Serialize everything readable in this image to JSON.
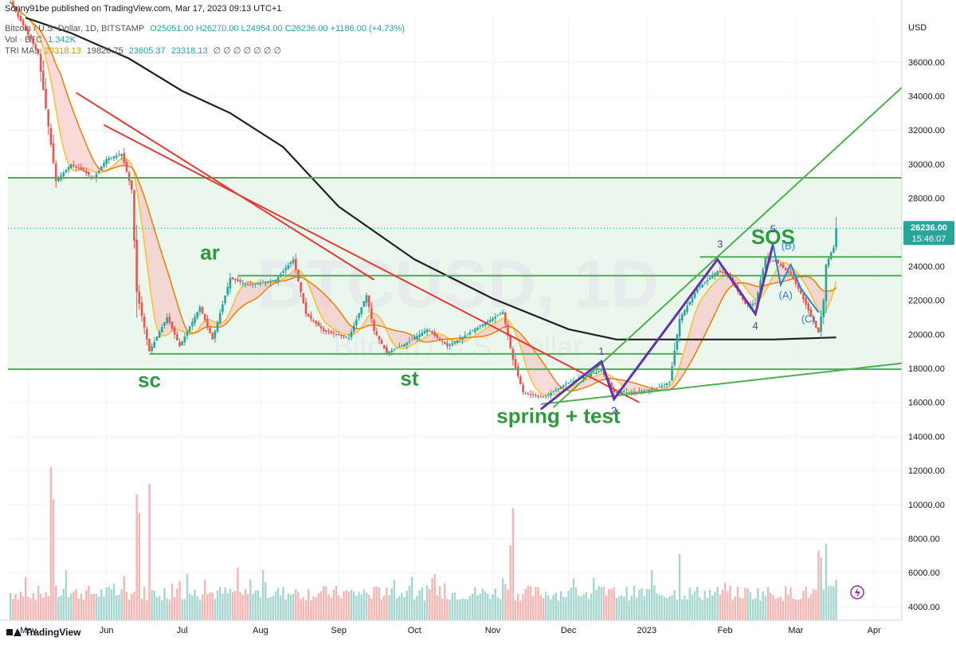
{
  "header": {
    "publish_line": "Sonny91be published on TradingView.com, Mar 17, 2023 09:13 UTC+1",
    "symbol_line": "Bitcoin / U.S. Dollar, 1D, BITSTAMP",
    "ohlc": "O25051.00 H26270.00 L24954.00 C26236.00 +1186.00 (+4.73%)",
    "vol_label": "Vol · BTC",
    "vol_value": "1.342K",
    "ma_label": "TRI MAs",
    "ma_values": [
      "23318.13",
      "19820.75",
      "23605.37",
      "23318.13"
    ],
    "ma_placeholders": "∅ ∅ ∅ ∅ ∅ ∅ ∅"
  },
  "watermark": {
    "symbol": "BTCUSD, 1D",
    "name": "Bitcoin / U.S. Dollar"
  },
  "footer": {
    "brand": "TradingView"
  },
  "price_tag": {
    "price": "26236.00",
    "countdown": "15:46:07"
  },
  "colors": {
    "up": "#26a69a",
    "down": "#ef5350",
    "accumulation_zone": "#e8f5e9",
    "support": "#4caf50",
    "resistance_trend": "#e53935",
    "wave_count": "#5e35b1",
    "corrective_wave": "#1e88e5",
    "ma_long": "#212121",
    "ma_fast": "#fbc02d",
    "ma_slow": "#f57c00"
  },
  "annotations": {
    "sc": "sc",
    "ar": "ar",
    "st": "st",
    "spring": "spring + test",
    "sos": "SOS",
    "waves": [
      "1",
      "2",
      "3",
      "4",
      "5"
    ],
    "corrective": [
      "(A)",
      "(B)",
      "(C)"
    ]
  },
  "chart_data": {
    "type": "candlestick",
    "title": "",
    "y_axis_unit": "USD",
    "ylim": [
      3200,
      38800
    ],
    "y_ticks": [
      "36000.00",
      "34000.00",
      "32000.00",
      "30000.00",
      "28000.00",
      "26000.00",
      "24000.00",
      "22000.00",
      "20000.00",
      "18000.00",
      "16000.00",
      "14000.00",
      "12000.00",
      "10000.00",
      "8000.00",
      "6000.00",
      "4000.00"
    ],
    "x_ticks": [
      "May",
      "Jun",
      "Jul",
      "Aug",
      "Sep",
      "Oct",
      "Nov",
      "Dec",
      "2023",
      "Feb",
      "Mar",
      "Apr"
    ],
    "x_tick_dates": [
      "2022-05-01",
      "2022-06-01",
      "2022-07-01",
      "2022-08-01",
      "2022-09-01",
      "2022-10-01",
      "2022-11-01",
      "2022-12-01",
      "2023-01-01",
      "2023-02-01",
      "2023-03-01",
      "2023-04-01"
    ],
    "date_range": [
      "2022-04-23",
      "2023-04-12"
    ],
    "close_path": [
      [
        "2022-04-24",
        39500
      ],
      [
        "2022-05-05",
        36500
      ],
      [
        "2022-05-12",
        29000
      ],
      [
        "2022-05-18",
        30000
      ],
      [
        "2022-05-27",
        29200
      ],
      [
        "2022-06-01",
        30300
      ],
      [
        "2022-06-07",
        30600
      ],
      [
        "2022-06-11",
        28500
      ],
      [
        "2022-06-13",
        22500
      ],
      [
        "2022-06-18",
        19000
      ],
      [
        "2022-06-25",
        21000
      ],
      [
        "2022-06-30",
        19300
      ],
      [
        "2022-07-08",
        21600
      ],
      [
        "2022-07-13",
        19700
      ],
      [
        "2022-07-20",
        23300
      ],
      [
        "2022-07-27",
        22900
      ],
      [
        "2022-08-07",
        23200
      ],
      [
        "2022-08-14",
        24400
      ],
      [
        "2022-08-19",
        21200
      ],
      [
        "2022-08-26",
        20200
      ],
      [
        "2022-09-05",
        19800
      ],
      [
        "2022-09-12",
        22300
      ],
      [
        "2022-09-15",
        20200
      ],
      [
        "2022-09-20",
        18900
      ],
      [
        "2022-09-28",
        19500
      ],
      [
        "2022-10-06",
        20300
      ],
      [
        "2022-10-14",
        19300
      ],
      [
        "2022-10-26",
        20400
      ],
      [
        "2022-11-05",
        21300
      ],
      [
        "2022-11-09",
        18500
      ],
      [
        "2022-11-13",
        16600
      ],
      [
        "2022-11-21",
        16300
      ],
      [
        "2022-11-30",
        17100
      ],
      [
        "2022-12-14",
        17900
      ],
      [
        "2022-12-19",
        16600
      ],
      [
        "2022-12-28",
        16600
      ],
      [
        "2023-01-05",
        16850
      ],
      [
        "2023-01-10",
        17200
      ],
      [
        "2023-01-14",
        20900
      ],
      [
        "2023-01-21",
        22700
      ],
      [
        "2023-01-29",
        23700
      ],
      [
        "2023-02-02",
        23500
      ],
      [
        "2023-02-09",
        21800
      ],
      [
        "2023-02-13",
        21800
      ],
      [
        "2023-02-17",
        24500
      ],
      [
        "2023-02-21",
        24300
      ],
      [
        "2023-02-27",
        23500
      ],
      [
        "2023-03-03",
        22400
      ],
      [
        "2023-03-09",
        20400
      ],
      [
        "2023-03-10",
        20100
      ],
      [
        "2023-03-12",
        22000
      ],
      [
        "2023-03-13",
        24100
      ],
      [
        "2023-03-15",
        24800
      ],
      [
        "2023-03-16",
        25100
      ],
      [
        "2023-03-17",
        26236
      ]
    ],
    "candles_shown": 327,
    "last_bar": {
      "date": "2023-03-17",
      "open": 25051,
      "high": 26270,
      "low": 24954,
      "close": 26236,
      "change": 1186,
      "change_pct": 4.73
    },
    "series": [
      {
        "name": "TRI MA 1",
        "value": 23318.13,
        "color": "#fbc02d"
      },
      {
        "name": "TRI MA 2",
        "value": 19820.75,
        "color": "#212121"
      },
      {
        "name": "TRI MA 3",
        "value": 23605.37,
        "color": "#f57c00"
      },
      {
        "name": "TRI MA 4",
        "value": 23318.13,
        "color": "#fbc02d"
      }
    ],
    "long_ma_path": [
      [
        "2022-04-30",
        38600
      ],
      [
        "2022-05-18",
        37700
      ],
      [
        "2022-06-10",
        36200
      ],
      [
        "2022-07-01",
        34300
      ],
      [
        "2022-07-20",
        33000
      ],
      [
        "2022-08-10",
        31000
      ],
      [
        "2022-09-01",
        27500
      ],
      [
        "2022-10-01",
        24400
      ],
      [
        "2022-11-01",
        22100
      ],
      [
        "2022-12-01",
        20300
      ],
      [
        "2022-12-20",
        19700
      ],
      [
        "2023-01-20",
        19700
      ],
      [
        "2023-02-20",
        19700
      ],
      [
        "2023-03-17",
        19820.75
      ]
    ],
    "volume_ylim": [
      3200,
      12400
    ],
    "volume_spikes": [
      [
        "2022-05-10",
        12200
      ],
      [
        "2022-05-11",
        10300
      ],
      [
        "2022-06-13",
        10600
      ],
      [
        "2022-06-18",
        11200
      ],
      [
        "2022-06-14",
        9500
      ],
      [
        "2022-11-09",
        9800
      ],
      [
        "2022-11-08",
        7600
      ],
      [
        "2023-01-14",
        7100
      ],
      [
        "2023-03-10",
        7300
      ],
      [
        "2023-03-13",
        7700
      ],
      [
        "2023-03-11",
        6900
      ]
    ],
    "volume_base": 4800,
    "accumulation_range": [
      17950,
      29200
    ],
    "horizontal_levels": [
      {
        "price": 29200,
        "from": "2022-04-23",
        "to": "2023-04-12"
      },
      {
        "price": 17950,
        "from": "2022-04-23",
        "to": "2023-04-12"
      },
      {
        "price": 18850,
        "from": "2022-06-18",
        "to": "2023-01-15"
      },
      {
        "price": 23450,
        "from": "2022-07-23",
        "to": "2023-04-12"
      },
      {
        "price": 24550,
        "from": "2023-01-22",
        "to": "2023-04-12"
      }
    ],
    "trendlines": [
      {
        "color": "#e53935",
        "points": [
          [
            "2022-05-20",
            34200
          ],
          [
            "2022-09-15",
            23200
          ]
        ]
      },
      {
        "color": "#e53935",
        "points": [
          [
            "2022-05-31",
            32300
          ],
          [
            "2022-12-29",
            16000
          ]
        ]
      },
      {
        "color": "#4caf50",
        "points": [
          [
            "2022-11-20",
            15900
          ],
          [
            "2023-04-12",
            18300
          ]
        ]
      },
      {
        "color": "#4caf50",
        "points": [
          [
            "2022-11-25",
            15700
          ],
          [
            "2023-04-12",
            34500
          ]
        ]
      }
    ],
    "wave_path": [
      [
        "2022-11-20",
        15600
      ],
      [
        "2022-12-14",
        18400
      ],
      [
        "2022-12-19",
        16200
      ],
      [
        "2023-01-29",
        24400
      ],
      [
        "2023-02-13",
        21200
      ],
      [
        "2023-02-20",
        25300
      ]
    ],
    "corrective_path": [
      [
        "2023-02-20",
        25300
      ],
      [
        "2023-02-23",
        22900
      ],
      [
        "2023-02-27",
        24100
      ],
      [
        "2023-03-03",
        22700
      ],
      [
        "2023-03-10",
        21300
      ]
    ],
    "label_positions": {
      "sc": [
        "2022-06-18",
        16900
      ],
      "ar": [
        "2022-07-12",
        24400
      ],
      "st": [
        "2022-09-29",
        17000
      ],
      "spring": [
        "2022-11-27",
        14800
      ],
      "sos": [
        "2023-02-20",
        25300
      ],
      "w1": [
        "2022-12-14",
        18800
      ],
      "w2": [
        "2022-12-19",
        15300
      ],
      "w3": [
        "2023-01-30",
        25100
      ],
      "w4": [
        "2023-02-13",
        20300
      ],
      "w5": [
        "2023-02-20",
        26000
      ],
      "A": [
        "2023-02-25",
        22100
      ],
      "B": [
        "2023-02-26",
        25000
      ],
      "C": [
        "2023-03-06",
        20700
      ]
    }
  }
}
